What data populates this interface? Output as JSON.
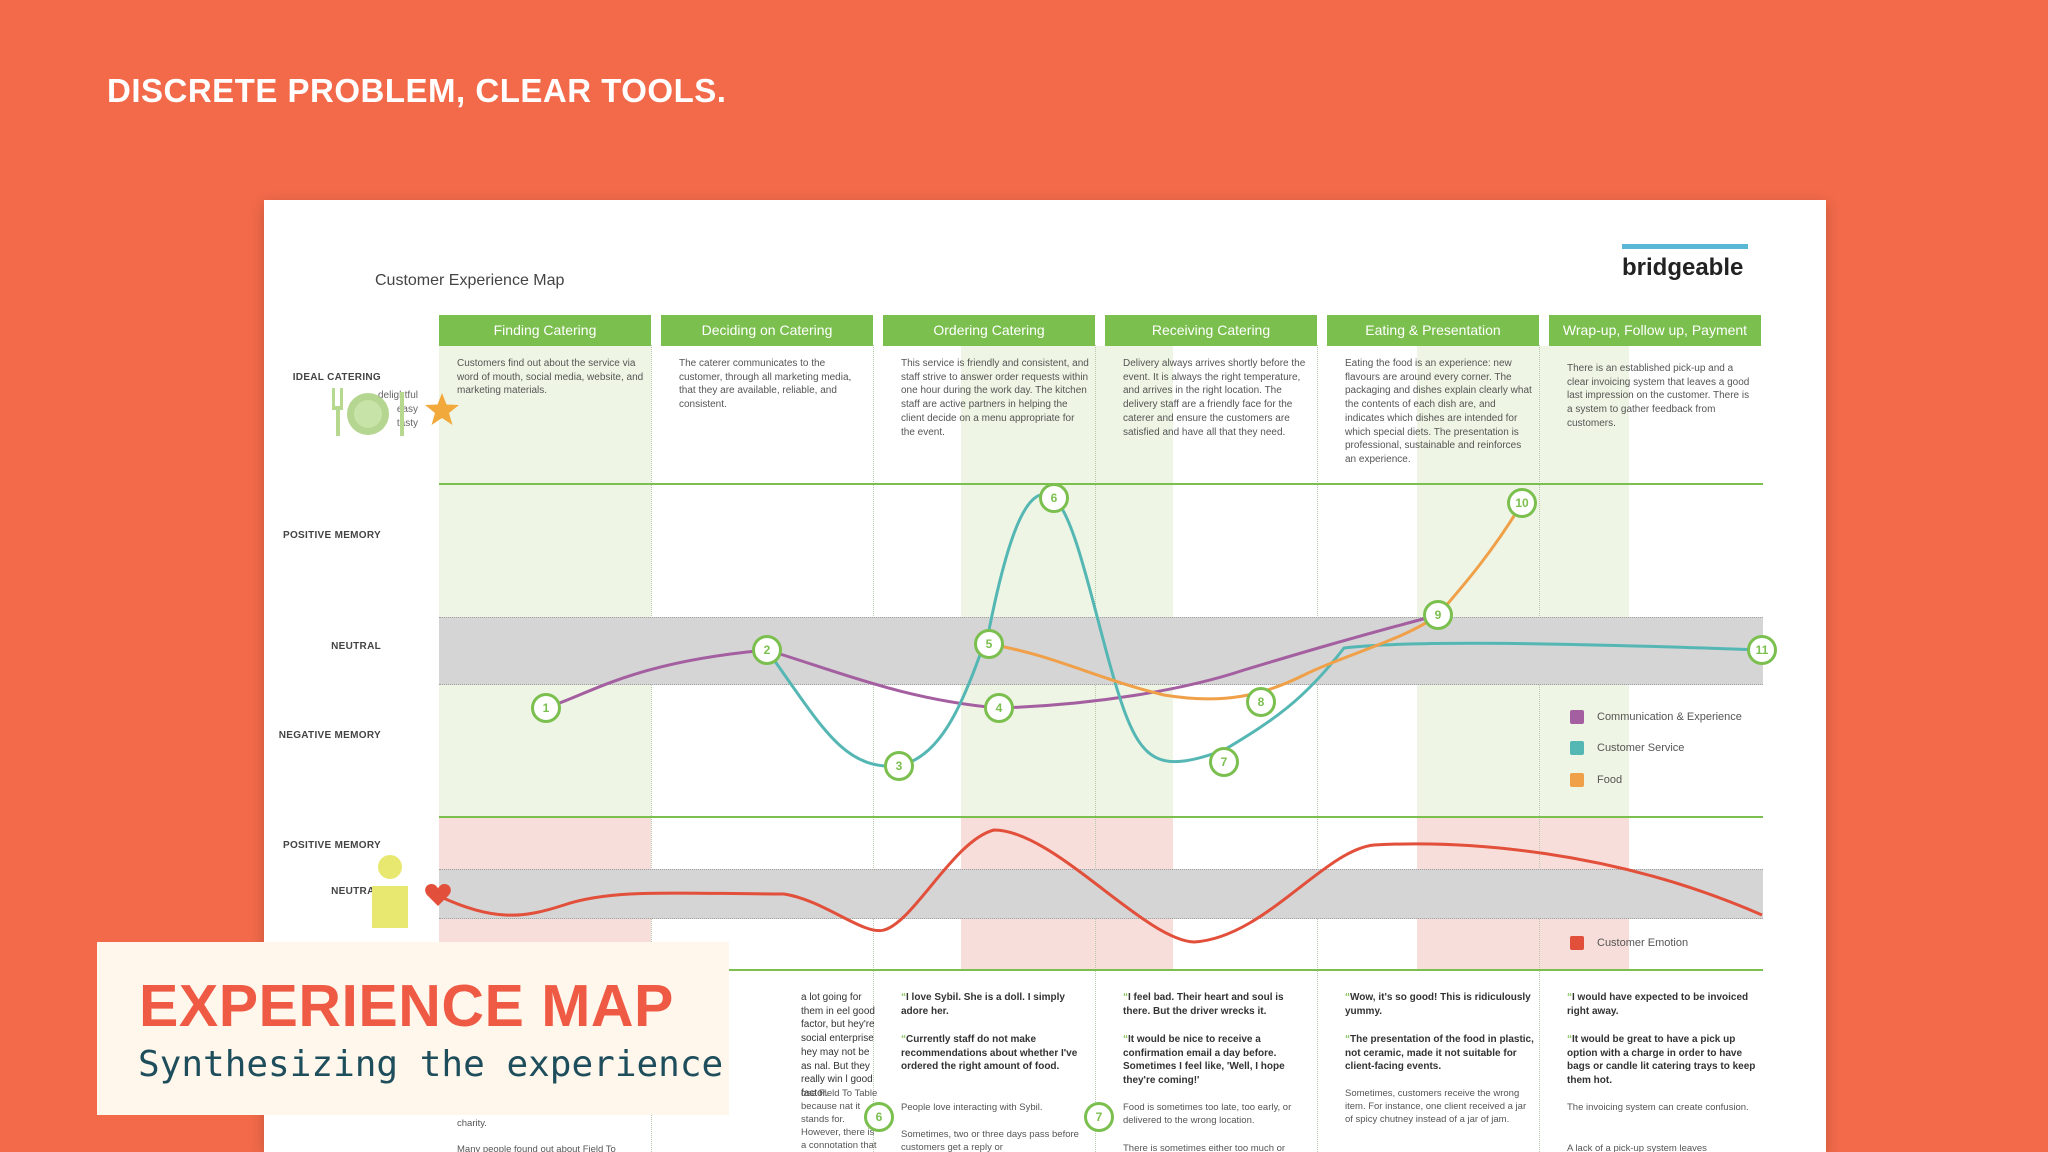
{
  "slide": {
    "title": "DISCRETE PROBLEM, CLEAR TOOLS.",
    "background_color": "#F26A4A"
  },
  "map": {
    "title": "Customer Experience Map",
    "logo": "bridgeable",
    "stages": [
      {
        "name": "Finding Catering",
        "desc": "Customers find out about the service via word of mouth, social media, website, and marketing materials.",
        "highlight": true
      },
      {
        "name": "Deciding on Catering",
        "desc": "The caterer communicates to the customer, through all marketing media, that they are available, reliable, and consistent.",
        "highlight": false
      },
      {
        "name": "Ordering Catering",
        "desc": "This service is friendly and consistent, and staff strive to answer order requests within one hour during the work day. The kitchen staff are active partners in helping the client decide on a menu appropriate for the event.",
        "highlight": true
      },
      {
        "name": "Receiving Catering",
        "desc": "Delivery always arrives shortly before the event. It is always the right temperature, and arrives in the right location. The delivery staff are a friendly face for the caterer and ensure the customers are satisfied and have all that they need.",
        "highlight": false
      },
      {
        "name": "Eating & Presentation",
        "desc": "Eating the food is an experience: new flavours are around every corner. The packaging and dishes explain clearly what the contents of each dish are, and indicates which dishes are intended for which special diets. The presentation is professional, sustainable and reinforces an experience.",
        "highlight": true
      },
      {
        "name": "Wrap-up, Follow up, Payment",
        "desc": "There is an established pick-up and a clear invoicing system that leaves a good last impression on the customer. There is a system to gather feedback from customers.",
        "highlight": false
      }
    ],
    "row_labels": {
      "ideal": "IDEAL CATERING",
      "positive": "POSITIVE MEMORY",
      "neutral": "NEUTRAL",
      "negative": "NEGATIVE MEMORY",
      "positive2": "POSITIVE MEMORY",
      "neutral2": "NEUTRAL"
    },
    "ideal_words": [
      "delightful",
      "easy",
      "tasty"
    ],
    "touchpoints": [
      "1",
      "2",
      "3",
      "4",
      "5",
      "6",
      "7",
      "8",
      "9",
      "10",
      "11"
    ],
    "legend": [
      {
        "label": "Communication & Experience",
        "color": "#A45FA0"
      },
      {
        "label": "Customer Service",
        "color": "#55B7B4"
      },
      {
        "label": "Food",
        "color": "#F0A048"
      }
    ],
    "emotion_legend": {
      "label": "Customer Emotion",
      "color": "#E24F3A"
    },
    "quotes": {
      "deciding_a": "a lot going for them in eel good factor, but hey're social enterprise hey may not be as nal. But they really win l good factor.",
      "deciding_b": "ose Field To Table because nat it stands for. However, there is a connotation that social enterprises are less professional.",
      "finding_a": "charity.",
      "finding_b": "Many people found out about Field To",
      "ordering_a": "I love Sybil. She is a doll. I simply adore her.",
      "ordering_b": "Currently staff do not make recommendations about whether I've ordered the right amount of food.",
      "ordering_c": "People love interacting with Sybil.",
      "ordering_d": "Sometimes, two or three days pass before customers get a reply or",
      "receiving_a": "I feel bad. Their heart and soul is there. But the driver wrecks it.",
      "receiving_b": "It would be nice to receive a confirmation email a day before. Sometimes I feel like, 'Well, I hope they're coming!'",
      "receiving_c": "Food is sometimes too late, too early, or delivered to the wrong location.",
      "receiving_d": "There is sometimes either too much or",
      "eating_a": "Wow, it's so good! This is ridiculously yummy.",
      "eating_b": "The presentation of the food in plastic, not ceramic, made it not suitable for client-facing events.",
      "eating_c": "Sometimes, customers receive the wrong item. For instance, one client received a jar of spicy chutney instead of a jar of jam.",
      "wrap_a": "I would have expected to be invoiced right away.",
      "wrap_b": "It would be great to have a pick up option with a charge in order to have bags or candle lit catering trays to keep them hot.",
      "wrap_c": "The invoicing system can create confusion.",
      "wrap_d": "A lack of a pick-up system leaves"
    },
    "colors": {
      "green": "#7BBF4E",
      "neutral_band": "#D5D5D5"
    }
  },
  "overlay": {
    "title": "EXPERIENCE MAP",
    "subtitle": "Synthesizing the experience"
  }
}
